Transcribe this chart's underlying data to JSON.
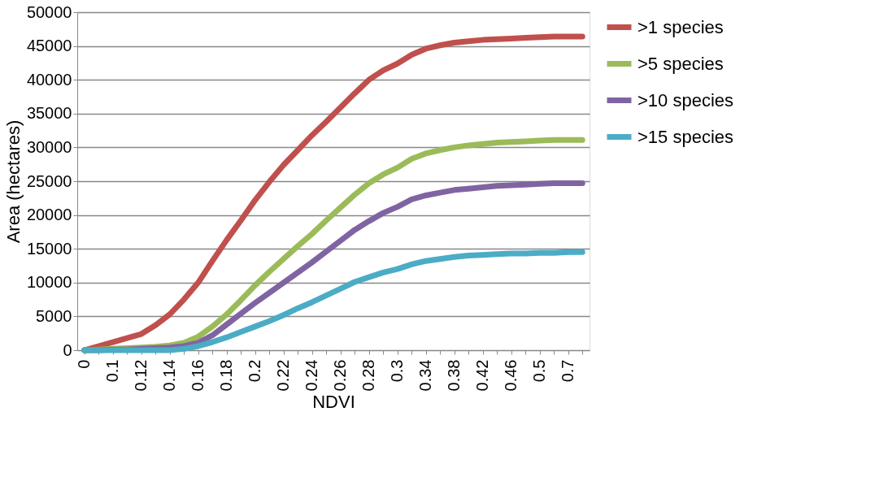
{
  "chart_data": {
    "type": "line",
    "xlabel": "NDVI",
    "ylabel": "Area (hectares)",
    "categories": [
      "0",
      null,
      "0.1",
      null,
      "0.12",
      null,
      "0.14",
      null,
      "0.16",
      null,
      "0.18",
      null,
      "0.2",
      null,
      "0.22",
      null,
      "0.24",
      null,
      "0.26",
      null,
      "0.28",
      null,
      "0.3",
      null,
      "0.34",
      null,
      "0.38",
      null,
      "0.42",
      null,
      "0.46",
      null,
      "0.5",
      null,
      "0.7",
      null
    ],
    "series": [
      {
        "name": ">1 species",
        "color": "#c0504d",
        "values": [
          0,
          600,
          1200,
          1800,
          2400,
          3700,
          5300,
          7500,
          10000,
          13200,
          16300,
          19200,
          22200,
          24900,
          27400,
          29600,
          31800,
          33800,
          35900,
          38000,
          40000,
          41400,
          42400,
          43700,
          44600,
          45100,
          45500,
          45700,
          45900,
          46000,
          46100,
          46200,
          46300,
          46400,
          46400,
          46400
        ]
      },
      {
        "name": ">5 species",
        "color": "#9bbb59",
        "values": [
          0,
          100,
          200,
          300,
          400,
          500,
          700,
          1100,
          2000,
          3500,
          5300,
          7400,
          9600,
          11600,
          13500,
          15400,
          17200,
          19200,
          21100,
          23000,
          24700,
          26000,
          27000,
          28300,
          29100,
          29600,
          30000,
          30300,
          30500,
          30700,
          30800,
          30900,
          31000,
          31100,
          31100,
          31100
        ]
      },
      {
        "name": ">10 species",
        "color": "#8064a2",
        "values": [
          0,
          0,
          100,
          100,
          200,
          300,
          400,
          600,
          1100,
          2200,
          3800,
          5400,
          7000,
          8500,
          10000,
          11500,
          13000,
          14600,
          16200,
          17800,
          19100,
          20300,
          21200,
          22300,
          22900,
          23300,
          23700,
          23900,
          24100,
          24300,
          24400,
          24500,
          24600,
          24700,
          24700,
          24700
        ]
      },
      {
        "name": ">15 species",
        "color": "#4bacc6",
        "values": [
          0,
          0,
          0,
          0,
          0,
          0,
          0,
          200,
          600,
          1200,
          1900,
          2700,
          3500,
          4300,
          5200,
          6200,
          7100,
          8100,
          9100,
          10100,
          10800,
          11500,
          12000,
          12700,
          13200,
          13500,
          13800,
          14000,
          14100,
          14200,
          14300,
          14300,
          14400,
          14400,
          14500,
          14500
        ]
      }
    ],
    "ylim": [
      0,
      50000
    ],
    "yticks": [
      0,
      5000,
      10000,
      15000,
      20000,
      25000,
      30000,
      35000,
      40000,
      45000,
      50000
    ],
    "grid": "y",
    "legend": "right",
    "marker": "none",
    "line_style": "solid"
  }
}
